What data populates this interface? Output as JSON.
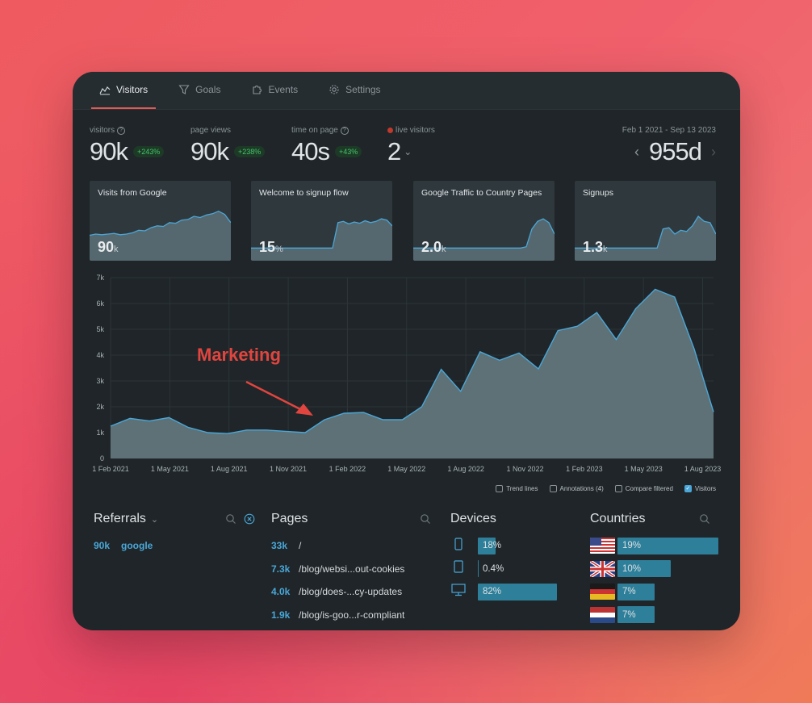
{
  "tabs": [
    {
      "label": "Visitors",
      "icon": "chart-icon",
      "active": true
    },
    {
      "label": "Goals",
      "icon": "funnel-icon",
      "active": false
    },
    {
      "label": "Events",
      "icon": "puzzle-icon",
      "active": false
    },
    {
      "label": "Settings",
      "icon": "gear-icon",
      "active": false
    }
  ],
  "stats": [
    {
      "label": "visitors",
      "value": "90k",
      "change": "+243%"
    },
    {
      "label": "page views",
      "value": "90k",
      "change": "+238%"
    },
    {
      "label": "time on page",
      "value": "40s",
      "change": "+43%"
    },
    {
      "label": "live visitors",
      "value": "2"
    }
  ],
  "daterange": {
    "label": "Feb 1 2021 - Sep 13 2023",
    "value": "955d"
  },
  "minis": [
    {
      "title": "Visits from Google",
      "value": "90",
      "unit": "k",
      "values": [
        40,
        42,
        41,
        42,
        43,
        41,
        42,
        44,
        48,
        47,
        52,
        55,
        54,
        60,
        59,
        64,
        65,
        70,
        68,
        72,
        74,
        78,
        73,
        60
      ]
    },
    {
      "title": "Welcome to signup flow",
      "value": "15",
      "unit": "%",
      "values": [
        20,
        20,
        20,
        20,
        20,
        20,
        20,
        20,
        20,
        20,
        20,
        20,
        20,
        20,
        20,
        20,
        60,
        62,
        58,
        61,
        59,
        63,
        60,
        62,
        66,
        64,
        55
      ]
    },
    {
      "title": "Google Traffic to Country Pages",
      "value": "2.0",
      "unit": "k",
      "values": [
        20,
        20,
        20,
        20,
        20,
        20,
        20,
        20,
        20,
        20,
        20,
        20,
        20,
        20,
        20,
        20,
        20,
        20,
        20,
        20,
        22,
        50,
        62,
        66,
        60,
        42
      ]
    },
    {
      "title": "Signups",
      "value": "1.3",
      "unit": "k",
      "values": [
        20,
        20,
        20,
        20,
        20,
        20,
        20,
        20,
        20,
        20,
        20,
        20,
        20,
        20,
        20,
        50,
        52,
        42,
        48,
        46,
        55,
        70,
        62,
        60,
        42
      ]
    }
  ],
  "chart_data": {
    "type": "area",
    "x": [
      "2021-02",
      "2021-03",
      "2021-04",
      "2021-05",
      "2021-06",
      "2021-07",
      "2021-08",
      "2021-09",
      "2021-10",
      "2021-11",
      "2021-12",
      "2022-01",
      "2022-02",
      "2022-03",
      "2022-04",
      "2022-05",
      "2022-06",
      "2022-07",
      "2022-08",
      "2022-09",
      "2022-10",
      "2022-11",
      "2022-12",
      "2023-01",
      "2023-02",
      "2023-03",
      "2023-04",
      "2023-05",
      "2023-06",
      "2023-07",
      "2023-08",
      "2023-09"
    ],
    "xticks": [
      "1 Feb 2021",
      "1 May 2021",
      "1 Aug 2021",
      "1 Nov 2021",
      "1 Feb 2022",
      "1 May 2022",
      "1 Aug 2022",
      "1 Nov 2022",
      "1 Feb 2023",
      "1 May 2023",
      "1 Aug 2023"
    ],
    "yticks": [
      "0",
      "1k",
      "2k",
      "3k",
      "4k",
      "5k",
      "6k",
      "7k"
    ],
    "ylim": [
      0,
      7000
    ],
    "series": [
      {
        "name": "Visitors",
        "values": [
          1250,
          1550,
          1450,
          1580,
          1200,
          1000,
          960,
          1100,
          1100,
          1050,
          1000,
          1500,
          1750,
          1780,
          1500,
          1500,
          2000,
          3450,
          2600,
          4130,
          3800,
          4080,
          3470,
          4950,
          5120,
          5650,
          4600,
          5800,
          6550,
          6250,
          4250,
          1800
        ]
      }
    ],
    "annotation": "Marketing"
  },
  "legend": [
    {
      "label": "Trend lines",
      "checked": false
    },
    {
      "label": "Annotations (4)",
      "checked": false
    },
    {
      "label": "Compare filtered",
      "checked": false
    },
    {
      "label": "Visitors",
      "checked": true
    }
  ],
  "referrals": {
    "title": "Referrals",
    "items": [
      {
        "count": "90k",
        "name": "google"
      }
    ]
  },
  "pages": {
    "title": "Pages",
    "items": [
      {
        "count": "33k",
        "path": "/"
      },
      {
        "count": "7.3k",
        "path": "/blog/websi...out-cookies"
      },
      {
        "count": "4.0k",
        "path": "/blog/does-...cy-updates"
      },
      {
        "count": "1.9k",
        "path": "/blog/is-goo...r-compliant"
      }
    ]
  },
  "devices": {
    "title": "Devices",
    "items": [
      {
        "icon": "phone-icon",
        "label": "18%",
        "pct": 18
      },
      {
        "icon": "tablet-icon",
        "label": "0.4%",
        "pct": 0.4
      },
      {
        "icon": "desktop-icon",
        "label": "82%",
        "pct": 82
      }
    ]
  },
  "countries": {
    "title": "Countries",
    "items": [
      {
        "flag": "us-flag-icon",
        "label": "19%",
        "pct": 19
      },
      {
        "flag": "uk-flag-icon",
        "label": "10%",
        "pct": 10
      },
      {
        "flag": "de-flag-icon",
        "label": "7%",
        "pct": 7
      },
      {
        "flag": "nl-flag-icon",
        "label": "7%",
        "pct": 7
      }
    ]
  }
}
